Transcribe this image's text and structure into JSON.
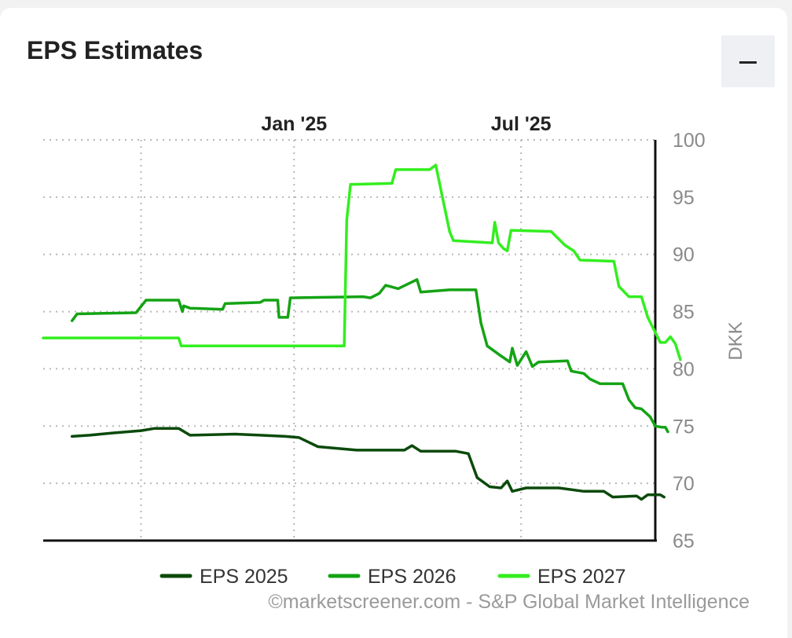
{
  "header": {
    "title": "EPS Estimates",
    "collapse_icon": "minus-icon"
  },
  "credit": "©marketscreener.com - S&P Global Market Intelligence",
  "colors": {
    "eps2025": "#0b4a0b",
    "eps2026": "#14a314",
    "eps2027": "#33ee1f",
    "grid": "#b8b8b8",
    "axis": "#111111",
    "tick_text": "#8a8a8a"
  },
  "chart_data": {
    "type": "line",
    "title": "EPS Estimates",
    "ylabel": "DKK",
    "ylim": [
      65,
      100
    ],
    "y_ticks": [
      65,
      70,
      75,
      80,
      85,
      90,
      95,
      100
    ],
    "x_tick_labels": [
      "Jan '25",
      "Jul '25"
    ],
    "x_range": [
      "2024-06-15",
      "2025-10-16"
    ],
    "grid": true,
    "legend_position": "bottom",
    "series": [
      {
        "name": "EPS 2025",
        "points": [
          [
            "2024-07-08",
            74.1
          ],
          [
            "2024-07-22",
            74.2
          ],
          [
            "2024-08-10",
            74.4
          ],
          [
            "2024-09-01",
            74.6
          ],
          [
            "2024-09-12",
            74.8
          ],
          [
            "2024-10-01",
            74.8
          ],
          [
            "2024-10-10",
            74.2
          ],
          [
            "2024-11-15",
            74.3
          ],
          [
            "2024-12-05",
            74.2
          ],
          [
            "2024-12-25",
            74.1
          ],
          [
            "2025-01-05",
            74.0
          ],
          [
            "2025-01-20",
            73.2
          ],
          [
            "2025-02-20",
            72.9
          ],
          [
            "2025-03-30",
            72.9
          ],
          [
            "2025-04-05",
            73.3
          ],
          [
            "2025-04-12",
            72.8
          ],
          [
            "2025-05-10",
            72.8
          ],
          [
            "2025-05-20",
            72.6
          ],
          [
            "2025-05-27",
            70.5
          ],
          [
            "2025-06-06",
            69.7
          ],
          [
            "2025-06-15",
            69.6
          ],
          [
            "2025-06-20",
            70.2
          ],
          [
            "2025-06-24",
            69.3
          ],
          [
            "2025-07-05",
            69.6
          ],
          [
            "2025-07-31",
            69.6
          ],
          [
            "2025-08-20",
            69.3
          ],
          [
            "2025-09-05",
            69.3
          ],
          [
            "2025-09-12",
            68.8
          ],
          [
            "2025-10-01",
            68.9
          ],
          [
            "2025-10-05",
            68.6
          ],
          [
            "2025-10-10",
            69.0
          ],
          [
            "2025-10-20",
            69.0
          ],
          [
            "2025-10-23",
            68.8
          ]
        ]
      },
      {
        "name": "EPS 2026",
        "points": [
          [
            "2024-07-08",
            84.2
          ],
          [
            "2024-07-12",
            84.8
          ],
          [
            "2024-08-28",
            84.9
          ],
          [
            "2024-09-05",
            86.0
          ],
          [
            "2024-10-01",
            86.0
          ],
          [
            "2024-10-04",
            85.0
          ],
          [
            "2024-10-05",
            85.5
          ],
          [
            "2024-10-10",
            85.3
          ],
          [
            "2024-11-05",
            85.2
          ],
          [
            "2024-11-07",
            85.7
          ],
          [
            "2024-12-05",
            85.8
          ],
          [
            "2024-12-08",
            86.0
          ],
          [
            "2024-12-19",
            86.0
          ],
          [
            "2024-12-20",
            84.5
          ],
          [
            "2024-12-27",
            84.5
          ],
          [
            "2024-12-29",
            86.2
          ],
          [
            "2025-02-25",
            86.3
          ],
          [
            "2025-03-03",
            86.2
          ],
          [
            "2025-03-10",
            86.6
          ],
          [
            "2025-03-15",
            87.3
          ],
          [
            "2025-03-25",
            87.0
          ],
          [
            "2025-04-09",
            87.8
          ],
          [
            "2025-04-12",
            86.7
          ],
          [
            "2025-05-05",
            86.9
          ],
          [
            "2025-05-26",
            86.9
          ],
          [
            "2025-05-30",
            84.0
          ],
          [
            "2025-06-04",
            82.0
          ],
          [
            "2025-06-14",
            81.2
          ],
          [
            "2025-06-22",
            80.6
          ],
          [
            "2025-06-24",
            81.8
          ],
          [
            "2025-06-28",
            80.3
          ],
          [
            "2025-07-05",
            81.5
          ],
          [
            "2025-07-10",
            80.2
          ],
          [
            "2025-07-15",
            80.6
          ],
          [
            "2025-08-07",
            80.7
          ],
          [
            "2025-08-10",
            79.8
          ],
          [
            "2025-08-20",
            79.6
          ],
          [
            "2025-08-25",
            79.1
          ],
          [
            "2025-09-02",
            78.7
          ],
          [
            "2025-09-20",
            78.7
          ],
          [
            "2025-09-25",
            77.3
          ],
          [
            "2025-09-30",
            76.6
          ],
          [
            "2025-10-05",
            76.5
          ],
          [
            "2025-10-12",
            75.8
          ],
          [
            "2025-10-16",
            75.0
          ],
          [
            "2025-10-21",
            74.9
          ],
          [
            "2025-10-24",
            74.9
          ],
          [
            "2025-10-26",
            74.5
          ]
        ]
      },
      {
        "name": "EPS 2027",
        "points": [
          [
            "2024-06-15",
            82.7
          ],
          [
            "2024-10-01",
            82.7
          ],
          [
            "2024-10-03",
            82.0
          ],
          [
            "2025-02-10",
            82.0
          ],
          [
            "2025-02-12",
            93.0
          ],
          [
            "2025-02-15",
            96.1
          ],
          [
            "2025-03-20",
            96.2
          ],
          [
            "2025-03-23",
            97.4
          ],
          [
            "2025-04-19",
            97.4
          ],
          [
            "2025-04-24",
            97.8
          ],
          [
            "2025-05-05",
            92.0
          ],
          [
            "2025-05-08",
            91.2
          ],
          [
            "2025-06-08",
            91.0
          ],
          [
            "2025-06-10",
            92.8
          ],
          [
            "2025-06-13",
            91.0
          ],
          [
            "2025-06-17",
            90.5
          ],
          [
            "2025-06-20",
            90.3
          ],
          [
            "2025-06-23",
            92.1
          ],
          [
            "2025-07-25",
            92.0
          ],
          [
            "2025-08-05",
            90.8
          ],
          [
            "2025-08-12",
            90.3
          ],
          [
            "2025-08-17",
            89.5
          ],
          [
            "2025-09-13",
            89.4
          ],
          [
            "2025-09-17",
            87.2
          ],
          [
            "2025-09-25",
            86.3
          ],
          [
            "2025-10-05",
            86.3
          ],
          [
            "2025-10-10",
            84.5
          ],
          [
            "2025-10-20",
            82.3
          ],
          [
            "2025-10-24",
            82.3
          ],
          [
            "2025-10-28",
            82.8
          ],
          [
            "2025-11-01",
            82.2
          ],
          [
            "2025-11-05",
            80.8
          ]
        ]
      }
    ]
  }
}
